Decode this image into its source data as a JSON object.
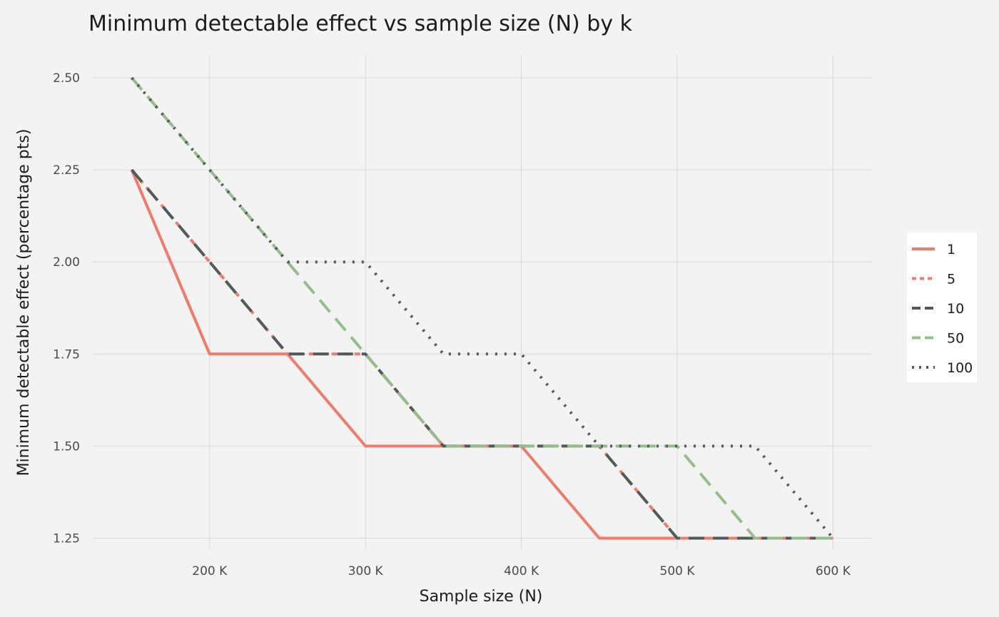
{
  "chart_data": {
    "type": "line",
    "title": "Minimum detectable effect vs sample size (N) by k",
    "xlabel": "Sample size (N)",
    "ylabel": "Minimum detectable effect (percentage pts)",
    "xlim": [
      125000,
      625000
    ],
    "ylim": [
      1.22,
      2.56
    ],
    "x_ticks": [
      200000,
      300000,
      400000,
      500000,
      600000
    ],
    "x_tick_labels": [
      "200 K",
      "300 K",
      "400 K",
      "500 K",
      "600 K"
    ],
    "y_ticks": [
      1.25,
      1.5,
      1.75,
      2.0,
      2.25,
      2.5
    ],
    "y_tick_labels": [
      "1.25",
      "1.50",
      "1.75",
      "2.00",
      "2.25",
      "2.50"
    ],
    "grid": true,
    "legend_position": "right",
    "x": [
      150000,
      200000,
      250000,
      300000,
      350000,
      400000,
      450000,
      500000,
      550000,
      600000
    ],
    "series": [
      {
        "name": "1",
        "color": "#f07b6b",
        "dash": "solid",
        "values": [
          2.25,
          1.75,
          1.75,
          1.5,
          1.5,
          1.5,
          1.25,
          1.25,
          1.25,
          1.25
        ]
      },
      {
        "name": "5",
        "color": "#f07b6b",
        "dash": "short-dash",
        "values": [
          2.25,
          2.0,
          1.75,
          1.75,
          1.5,
          1.5,
          1.5,
          1.25,
          1.25,
          1.25
        ]
      },
      {
        "name": "10",
        "color": "#4f5b5b",
        "dash": "long-dash",
        "values": [
          2.25,
          2.0,
          1.75,
          1.75,
          1.5,
          1.5,
          1.5,
          1.25,
          1.25,
          1.25
        ]
      },
      {
        "name": "50",
        "color": "#94bd8a",
        "dash": "long-dash",
        "values": [
          2.5,
          2.25,
          2.0,
          1.75,
          1.5,
          1.5,
          1.5,
          1.5,
          1.25,
          1.25
        ]
      },
      {
        "name": "100",
        "color": "#4f5b5b",
        "dash": "dotted",
        "values": [
          2.5,
          2.25,
          2.0,
          2.0,
          1.75,
          1.75,
          1.5,
          1.5,
          1.5,
          1.25
        ]
      }
    ]
  }
}
